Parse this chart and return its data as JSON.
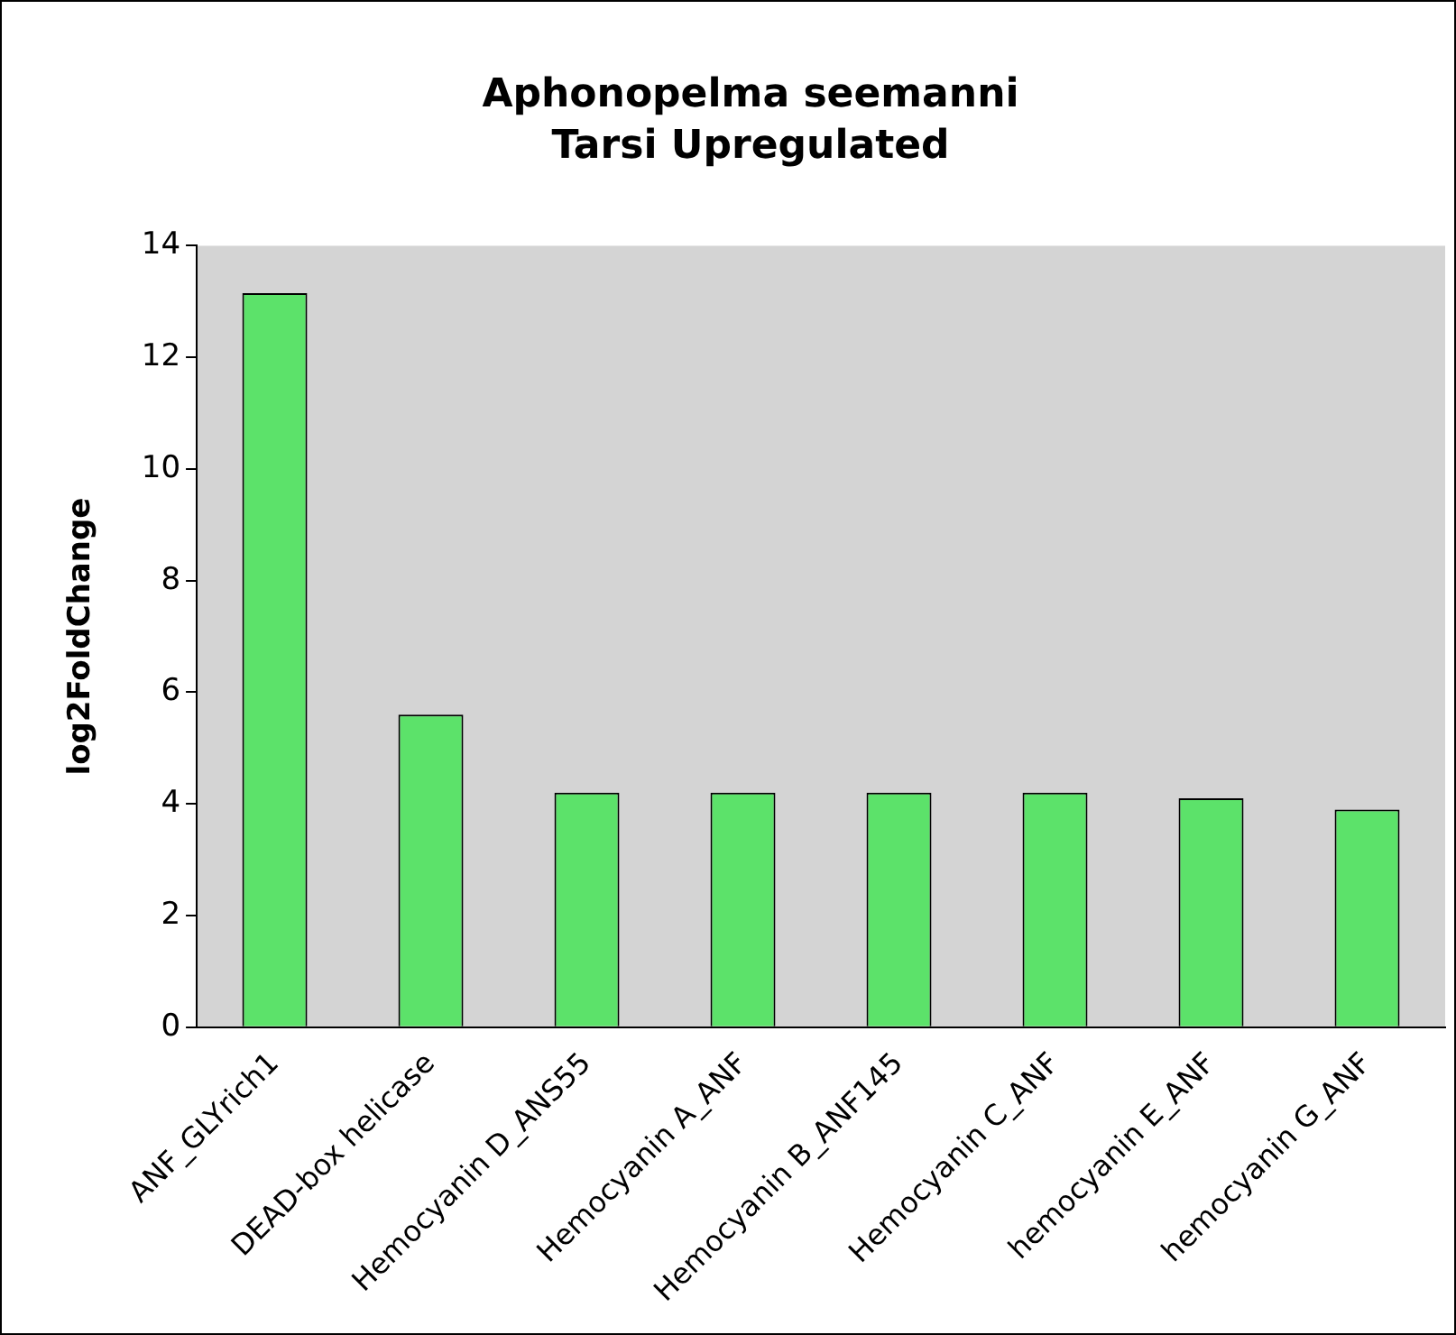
{
  "chart_data": {
    "type": "bar",
    "title": "Aphonopelma seemanni\nTarsi Upregulated",
    "ylabel": "log2FoldChange",
    "categories": [
      "ANF_GLYrich1",
      "DEAD-box helicase",
      "Hemocyanin D_ANS55",
      "Hemocyanin A_ANF",
      "Hemocyanin B_ANF145",
      "Hemocyanin C_ANF",
      "hemocyanin E_ANF",
      "hemocyanin G_ANF"
    ],
    "values": [
      13.15,
      5.6,
      4.2,
      4.2,
      4.2,
      4.2,
      4.1,
      3.9
    ],
    "color": "#5ce26a",
    "ylim": [
      0,
      14
    ],
    "yticks": [
      0,
      2,
      4,
      6,
      8,
      10,
      12,
      14
    ],
    "grid": false,
    "legend": false
  }
}
